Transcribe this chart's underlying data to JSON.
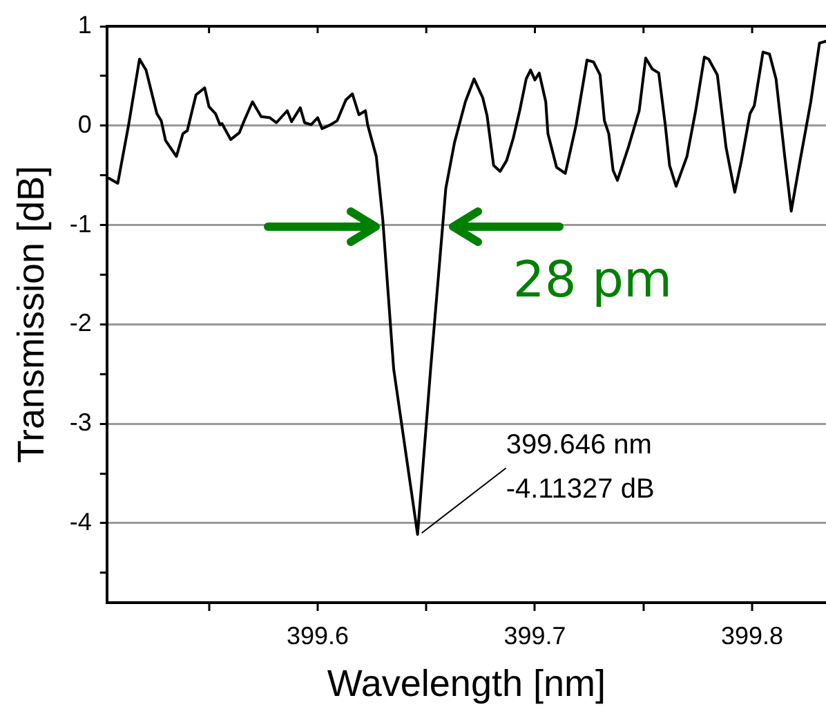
{
  "chart_data": {
    "type": "line",
    "xlabel": "Wavelength [nm]",
    "ylabel": "Transmission [dB]",
    "xlim": [
      399.503,
      399.834
    ],
    "ylim": [
      -4.8,
      1
    ],
    "xticks": [
      {
        "value": 399.55,
        "label": null
      },
      399.6,
      {
        "value": 399.65,
        "label": null
      },
      399.7,
      {
        "value": 399.75,
        "label": null
      },
      399.8
    ],
    "yticks": [
      -4,
      {
        "value": -3.5,
        "label": null
      },
      -3,
      {
        "value": -2.5,
        "label": null
      },
      -2,
      {
        "value": -1.5,
        "label": null
      },
      -1,
      {
        "value": -0.5,
        "label": null
      },
      0,
      {
        "value": 0.5,
        "label": null
      },
      1,
      {
        "value": -4.5,
        "label": null
      }
    ],
    "grid": "y",
    "legend": false,
    "marker": "none",
    "line_style": "solid",
    "annotations": [
      {
        "text": "399.646 nm\n-4.11327 dB",
        "x": 399.646,
        "y": -4.11327
      },
      "28 pm"
    ],
    "series": [
      {
        "color": "#000000",
        "x": [
          399.504,
          399.508,
          399.513,
          399.518,
          399.521,
          399.526,
          399.528,
          399.53,
          399.535,
          399.538,
          399.54,
          399.544,
          399.548,
          399.55,
          399.553,
          399.555,
          399.556,
          399.56,
          399.564,
          399.566,
          399.57,
          399.574,
          399.578,
          399.581,
          399.586,
          399.588,
          399.592,
          399.594,
          399.597,
          399.6,
          399.602,
          399.606,
          399.609,
          399.613,
          399.616,
          399.619,
          399.622,
          399.623,
          399.627,
          399.63,
          399.635,
          399.646,
          399.652,
          399.659,
          399.663,
          399.668,
          399.672,
          399.676,
          399.678,
          399.681,
          399.684,
          399.687,
          399.69,
          399.693,
          399.696,
          399.698,
          399.7,
          399.702,
          399.705,
          399.706,
          399.71,
          399.714,
          399.719,
          399.724,
          399.727,
          399.73,
          399.732,
          399.734,
          399.736,
          399.738,
          399.743,
          399.748,
          399.751,
          399.754,
          399.757,
          399.76,
          399.762,
          399.765,
          399.77,
          399.774,
          399.778,
          399.78,
          399.784,
          399.788,
          399.792,
          399.795,
          399.799,
          399.801,
          399.805,
          399.808,
          399.811,
          399.815,
          399.818,
          399.822,
          399.827,
          399.831,
          399.834
        ],
        "values": [
          -0.53,
          -0.58,
          0.01,
          0.67,
          0.56,
          0.12,
          0.05,
          -0.15,
          -0.31,
          -0.08,
          -0.05,
          0.31,
          0.38,
          0.19,
          0.12,
          0.01,
          0.02,
          -0.14,
          -0.07,
          0.04,
          0.24,
          0.09,
          0.08,
          0.03,
          0.15,
          0.04,
          0.18,
          0.03,
          0.01,
          0.08,
          -0.03,
          0.01,
          0.05,
          0.26,
          0.32,
          0.11,
          0.15,
          0.01,
          -0.31,
          -0.95,
          -2.45,
          -4.11327,
          -2.45,
          -0.63,
          -0.17,
          0.24,
          0.47,
          0.28,
          0.1,
          -0.4,
          -0.46,
          -0.35,
          -0.13,
          0.15,
          0.47,
          0.56,
          0.46,
          0.53,
          0.24,
          -0.08,
          -0.42,
          -0.48,
          0.01,
          0.66,
          0.64,
          0.51,
          0.05,
          -0.08,
          -0.45,
          -0.55,
          -0.22,
          0.15,
          0.68,
          0.57,
          0.53,
          0.01,
          -0.4,
          -0.61,
          -0.31,
          0.15,
          0.69,
          0.67,
          0.51,
          -0.22,
          -0.67,
          -0.36,
          0.12,
          0.2,
          0.74,
          0.72,
          0.47,
          -0.31,
          -0.86,
          -0.36,
          0.24,
          0.83,
          0.85
        ]
      }
    ]
  }
}
